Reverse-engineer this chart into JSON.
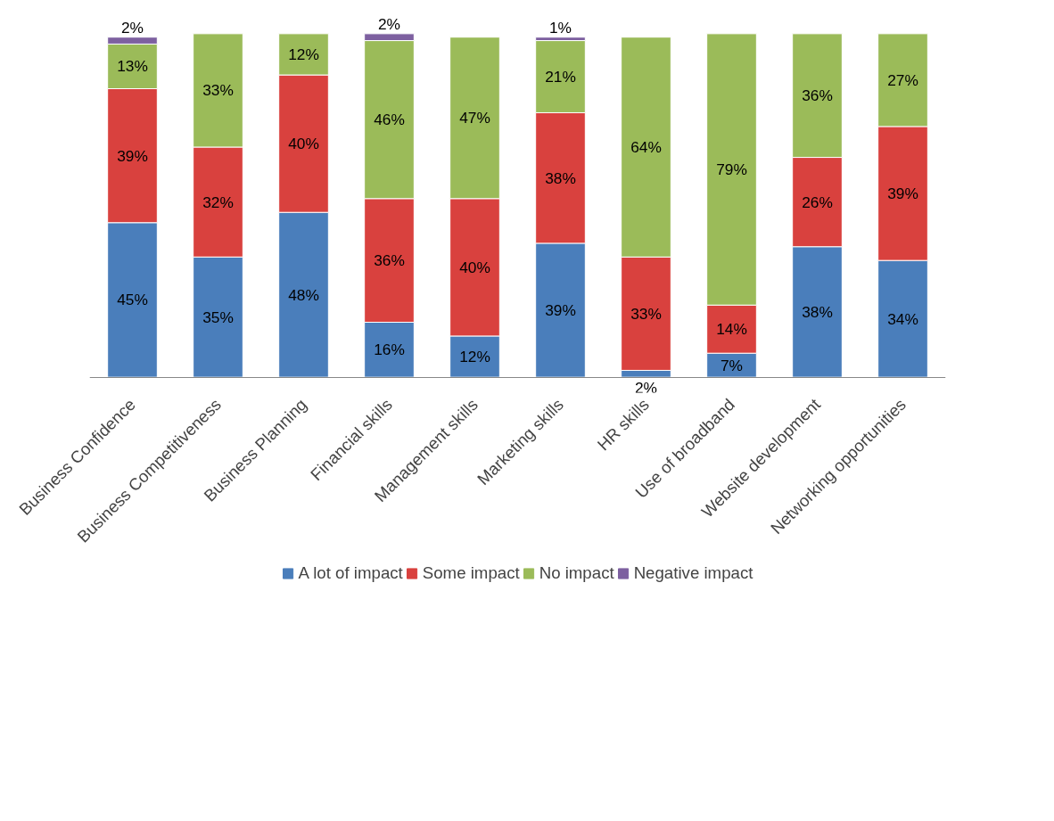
{
  "chart_data": {
    "type": "bar",
    "stacked": true,
    "legend": "bottom",
    "grid": false,
    "categories": [
      "Business Confidence",
      "Business Competitiveness",
      "Business Planning",
      "Financial skills",
      "Management skills",
      "Marketing skills",
      "HR skills",
      "Use of broadband",
      "Website development",
      "Networking opportunities"
    ],
    "series": [
      {
        "name": "A lot of impact",
        "color": "#4a7ebb",
        "values": [
          45,
          35,
          48,
          16,
          12,
          39,
          2,
          7,
          38,
          34
        ],
        "value_labels": [
          "45%",
          "35%",
          "48%",
          "16%",
          "12%",
          "39%",
          "2%",
          "7%",
          "38%",
          "34%"
        ]
      },
      {
        "name": "Some impact",
        "color": "#d9413e",
        "values": [
          39,
          32,
          40,
          36,
          40,
          38,
          33,
          14,
          26,
          39
        ],
        "value_labels": [
          "39%",
          "32%",
          "40%",
          "36%",
          "40%",
          "38%",
          "33%",
          "14%",
          "26%",
          "39%"
        ]
      },
      {
        "name": "No impact",
        "color": "#9bbb59",
        "values": [
          13,
          33,
          12,
          46,
          47,
          21,
          64,
          79,
          36,
          27
        ],
        "value_labels": [
          "13%",
          "33%",
          "12%",
          "46%",
          "47%",
          "21%",
          "64%",
          "79%",
          "36%",
          "27%"
        ]
      },
      {
        "name": "Negative impact",
        "color": "#7d60a0",
        "values": [
          2,
          null,
          null,
          2,
          null,
          1,
          null,
          null,
          null,
          null
        ],
        "value_labels": [
          "2%",
          null,
          null,
          "2%",
          null,
          "1%",
          null,
          null,
          null,
          null
        ]
      }
    ]
  }
}
